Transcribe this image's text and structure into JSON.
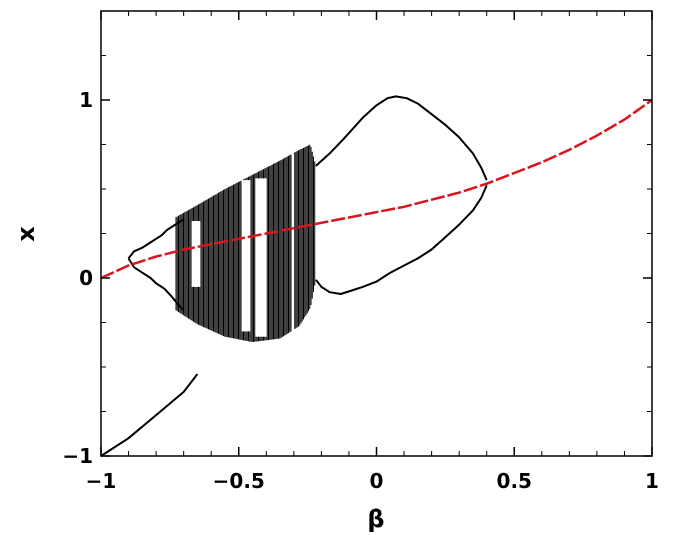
{
  "chart_data": {
    "type": "line",
    "title": "",
    "xlabel": "β",
    "ylabel": "x",
    "xlim": [
      -1,
      1
    ],
    "ylim": [
      -1,
      1.5
    ],
    "x_ticks": [
      {
        "value": -1,
        "label": "−1"
      },
      {
        "value": -0.5,
        "label": "−0.5"
      },
      {
        "value": 0,
        "label": "0"
      },
      {
        "value": 0.5,
        "label": "0.5"
      },
      {
        "value": 1,
        "label": "1"
      }
    ],
    "y_ticks": [
      {
        "value": -1,
        "label": "−1"
      },
      {
        "value": 0,
        "label": "0"
      },
      {
        "value": 1,
        "label": "1"
      }
    ],
    "grid": false,
    "series": [
      {
        "color": "#000000",
        "style": "solid",
        "x": [
          -1.0,
          -0.9,
          -0.8,
          -0.7,
          -0.65
        ],
        "y": [
          -1.0,
          -0.9,
          -0.77,
          -0.64,
          -0.54
        ]
      },
      {
        "color": "#000000",
        "style": "solid",
        "x": [
          -0.9,
          -0.88,
          -0.85,
          -0.82,
          -0.8,
          -0.78,
          -0.76,
          -0.74,
          -0.72,
          -0.7
        ],
        "y": [
          0.11,
          0.15,
          0.17,
          0.2,
          0.22,
          0.24,
          0.27,
          0.29,
          0.31,
          0.33
        ]
      },
      {
        "color": "#000000",
        "style": "solid",
        "x": [
          -0.9,
          -0.88,
          -0.85,
          -0.82,
          -0.8,
          -0.77,
          -0.74,
          -0.72,
          -0.7
        ],
        "y": [
          0.11,
          0.06,
          0.03,
          0.0,
          -0.03,
          -0.06,
          -0.11,
          -0.15,
          -0.18
        ]
      },
      {
        "color": "#000000",
        "style": "solid",
        "x": [
          -0.22,
          -0.17,
          -0.12,
          -0.05,
          0.0,
          0.04,
          0.07,
          0.11,
          0.15,
          0.2,
          0.25,
          0.3,
          0.35,
          0.38,
          0.4
        ],
        "y": [
          0.63,
          0.7,
          0.78,
          0.9,
          0.97,
          1.01,
          1.02,
          1.01,
          0.98,
          0.92,
          0.86,
          0.79,
          0.7,
          0.62,
          0.55
        ]
      },
      {
        "color": "#000000",
        "style": "solid",
        "x": [
          -0.22,
          -0.2,
          -0.17,
          -0.13,
          -0.09,
          -0.05,
          0.0,
          0.05,
          0.1,
          0.15,
          0.2,
          0.25,
          0.3,
          0.35,
          0.38,
          0.4
        ],
        "y": [
          -0.01,
          -0.05,
          -0.08,
          -0.09,
          -0.07,
          -0.05,
          -0.02,
          0.03,
          0.07,
          0.11,
          0.16,
          0.23,
          0.3,
          0.38,
          0.45,
          0.52
        ]
      },
      {
        "color": "#d9141c",
        "style": "dashed",
        "x": [
          -1.0,
          -0.9,
          -0.8,
          -0.7,
          -0.6,
          -0.5,
          -0.4,
          -0.3,
          -0.2,
          -0.1,
          0.0,
          0.1,
          0.2,
          0.3,
          0.4,
          0.5,
          0.6,
          0.7,
          0.8,
          0.9,
          1.0
        ],
        "y": [
          0.0,
          0.07,
          0.12,
          0.16,
          0.19,
          0.22,
          0.25,
          0.28,
          0.31,
          0.34,
          0.37,
          0.4,
          0.44,
          0.48,
          0.53,
          0.59,
          0.65,
          0.72,
          0.8,
          0.89,
          1.0
        ]
      }
    ],
    "chaotic_band": {
      "color": "#000000",
      "x_range": [
        -0.73,
        -0.22
      ],
      "upper": {
        "x": [
          -0.73,
          -0.65,
          -0.55,
          -0.45,
          -0.35,
          -0.28,
          -0.24,
          -0.22
        ],
        "y": [
          0.34,
          0.41,
          0.5,
          0.58,
          0.66,
          0.72,
          0.75,
          0.63
        ]
      },
      "lower": {
        "x": [
          -0.73,
          -0.65,
          -0.55,
          -0.45,
          -0.35,
          -0.28,
          -0.24,
          -0.22
        ],
        "y": [
          -0.18,
          -0.26,
          -0.33,
          -0.36,
          -0.34,
          -0.27,
          -0.17,
          -0.01
        ]
      },
      "windows": [
        {
          "x": [
            -0.67,
            -0.64
          ],
          "y": [
            -0.05,
            0.32
          ]
        },
        {
          "x": [
            -0.49,
            -0.46
          ],
          "y": [
            -0.3,
            0.55
          ]
        },
        {
          "x": [
            -0.44,
            -0.4
          ],
          "y": [
            -0.33,
            0.56
          ]
        },
        {
          "x": [
            -0.31,
            -0.3
          ],
          "y": [
            -0.3,
            0.7
          ]
        }
      ]
    }
  }
}
